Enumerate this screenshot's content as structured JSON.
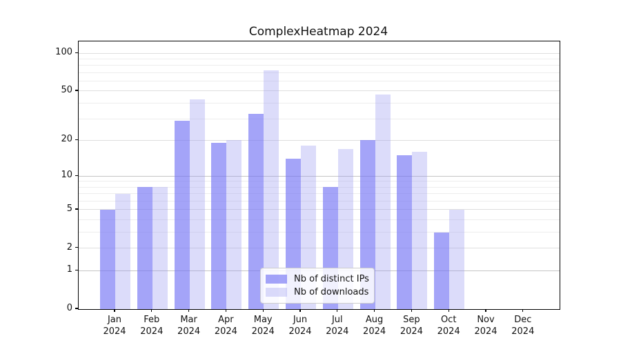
{
  "chart_data": {
    "type": "bar",
    "title": "ComplexHeatmap 2024",
    "categories": [
      "Jan 2024",
      "Feb 2024",
      "Mar 2024",
      "Apr 2024",
      "May 2024",
      "Jun 2024",
      "Jul 2024",
      "Aug 2024",
      "Sep 2024",
      "Oct 2024",
      "Nov 2024",
      "Dec 2024"
    ],
    "series": [
      {
        "name": "Nb of distinct IPs",
        "values": [
          5,
          8,
          29,
          19,
          33,
          14,
          8,
          20,
          15,
          3,
          0,
          0
        ],
        "color": "#7373f4",
        "alpha": 0.65
      },
      {
        "name": "Nb of downloads",
        "values": [
          7,
          8,
          43,
          20,
          73,
          18,
          17,
          47,
          16,
          5,
          0,
          0
        ],
        "color": "#9b9bf0",
        "alpha": 0.35
      }
    ],
    "xlabel": "",
    "ylabel": "",
    "yscale": "log1p",
    "ylim": [
      0,
      124
    ],
    "yticks": [
      0,
      1,
      2,
      5,
      10,
      20,
      50,
      100
    ],
    "minor_gridlines": [
      3,
      4,
      6,
      7,
      8,
      9,
      30,
      40,
      60,
      70,
      80,
      90
    ],
    "grid": "on",
    "legend_position": "lower center",
    "colors": {
      "major_gridline": "#c4c4c4",
      "mid_gridline": "#dedede",
      "minor_gridline": "#ededed",
      "axis": "#000000",
      "text": "#111111"
    }
  }
}
